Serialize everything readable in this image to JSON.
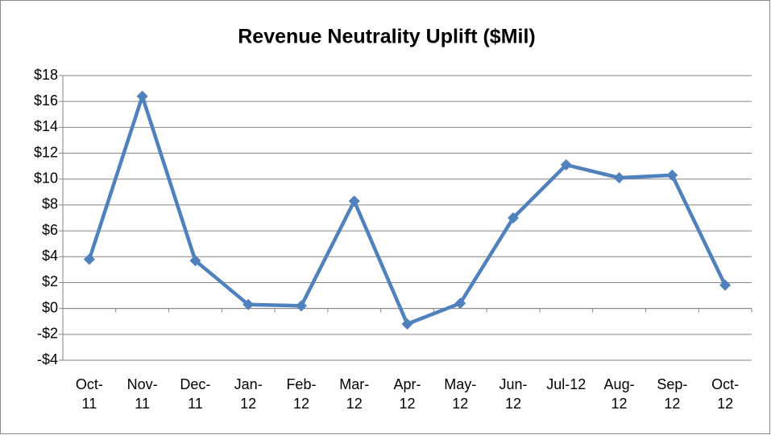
{
  "chart_data": {
    "type": "line",
    "title": "Revenue Neutrality Uplift ($Mil)",
    "categories": [
      "Oct-11",
      "Nov-11",
      "Dec-11",
      "Jan-12",
      "Feb-12",
      "Mar-12",
      "Apr-12",
      "May-12",
      "Jun-12",
      "Jul-12",
      "Aug-12",
      "Sep-12",
      "Oct-12"
    ],
    "series": [
      {
        "name": "Revenue Neutrality Uplift",
        "color": "#4f81bd",
        "values": [
          3.8,
          16.4,
          3.7,
          0.3,
          0.2,
          8.3,
          -1.2,
          0.4,
          7.0,
          11.1,
          10.1,
          10.3,
          1.8
        ]
      }
    ],
    "ylim": [
      -4,
      18
    ],
    "yticks": [
      {
        "value": -4,
        "label": "-$4"
      },
      {
        "value": -2,
        "label": "-$2"
      },
      {
        "value": 0,
        "label": "$0"
      },
      {
        "value": 2,
        "label": "$2"
      },
      {
        "value": 4,
        "label": "$4"
      },
      {
        "value": 6,
        "label": "$6"
      },
      {
        "value": 8,
        "label": "$8"
      },
      {
        "value": 10,
        "label": "$10"
      },
      {
        "value": 12,
        "label": "$12"
      },
      {
        "value": 14,
        "label": "$14"
      },
      {
        "value": 16,
        "label": "$16"
      },
      {
        "value": 18,
        "label": "$18"
      }
    ],
    "grid": true
  }
}
